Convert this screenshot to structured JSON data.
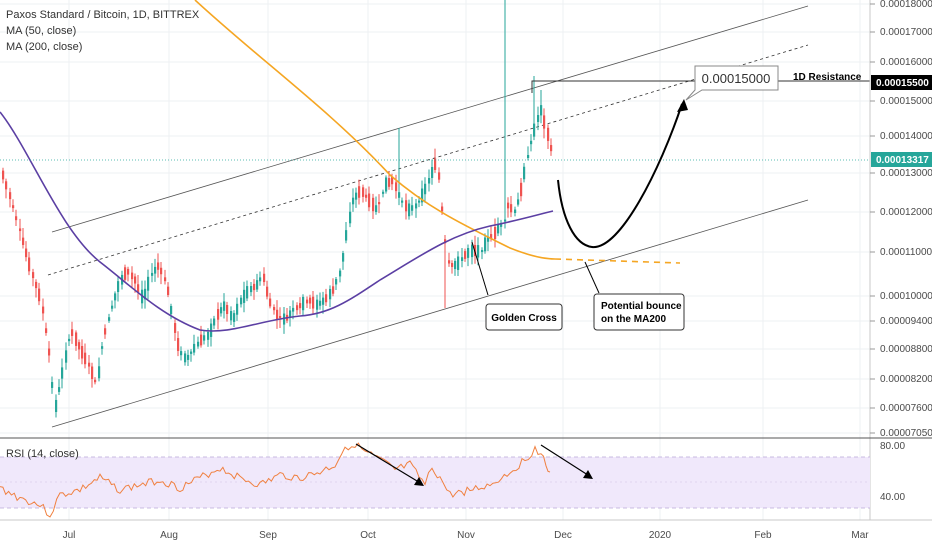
{
  "chart_data": {
    "type": "candlestick",
    "title": "Paxos Standard / Bitcoin, 1D, BITTREX",
    "legend": [
      "MA (50, close)",
      "MA (200, close)"
    ],
    "price_axis": {
      "ticks": [
        "0.00018000",
        "0.00017000",
        "0.00016000",
        "0.00015000",
        "0.00014000",
        "0.00013000",
        "0.00012000",
        "0.00011000",
        "0.00010000",
        "0.00009400",
        "0.00008800",
        "0.00008200",
        "0.00007600",
        "0.00007050"
      ],
      "current_price": "0.00013317",
      "resistance_price": "0.00015500",
      "log_scale": true
    },
    "time_axis": {
      "ticks": [
        "Jul",
        "Aug",
        "Sep",
        "Oct",
        "Nov",
        "Dec",
        "2020",
        "Feb",
        "Mar"
      ]
    },
    "annotations": {
      "target_label": "0.00015000",
      "resistance_label": "1D Resistance",
      "golden_cross_label": "Golden Cross",
      "bounce_label_line1": "Potential bounce",
      "bounce_label_line2": "on the MA200"
    },
    "rsi": {
      "label": "RSI (14, close)",
      "ticks": [
        "80.00",
        "40.00"
      ],
      "upper": 70,
      "lower": 30
    },
    "colors": {
      "up": "#26a69a",
      "down": "#ef5350",
      "ma50": "#5b3fa3",
      "ma200": "#f5a623",
      "rsi_line": "#f08040",
      "rsi_band": "#f0e8fb",
      "current_price_bg": "#26a69a",
      "resistance_bg": "#000000"
    }
  }
}
